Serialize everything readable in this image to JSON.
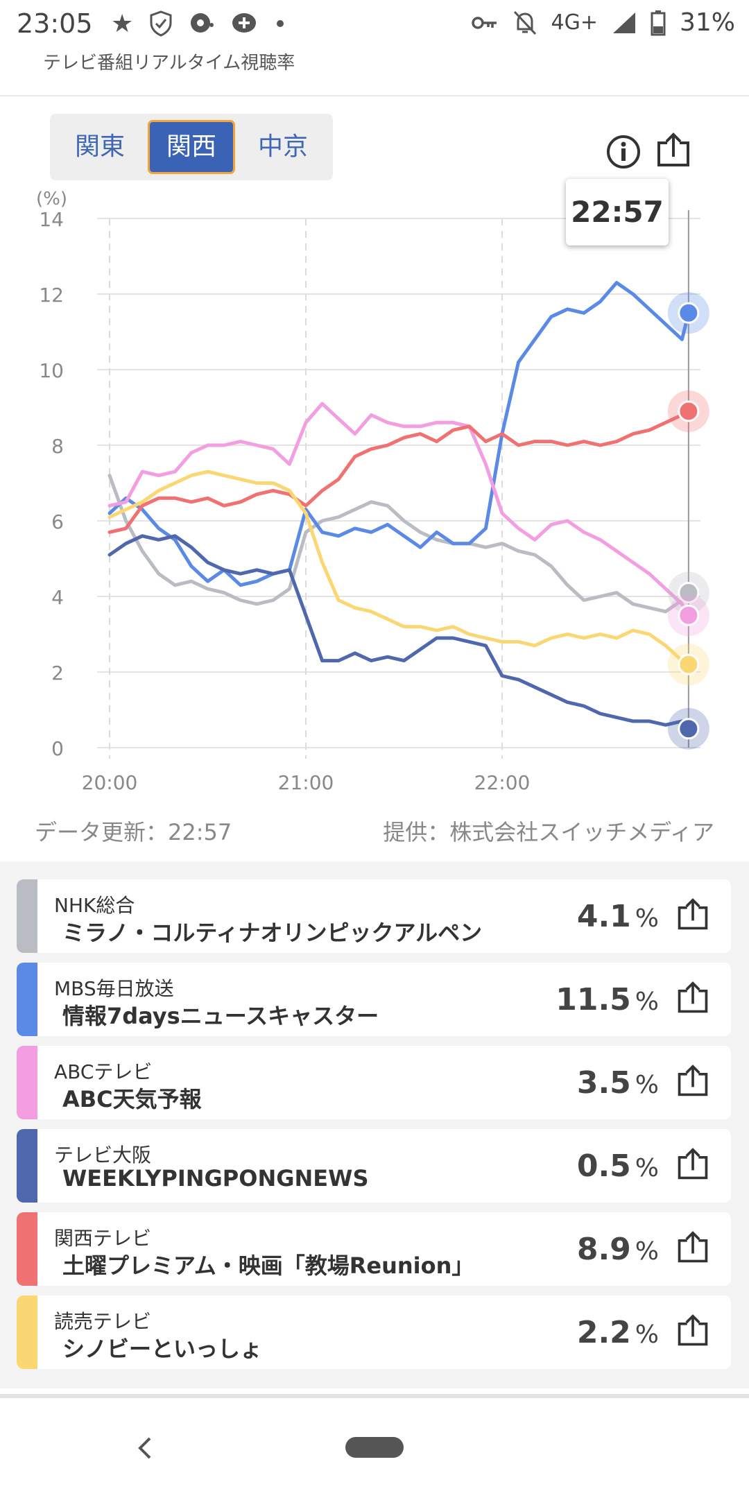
{
  "status_bar": {
    "time": "23:05",
    "network": "4G+",
    "battery": "31%",
    "left_icons": [
      "star-icon",
      "shield-icon",
      "chat-icon",
      "chat-plus-icon",
      "dot-icon"
    ],
    "right_icons": [
      "key-icon",
      "bell-off-icon",
      "signal-icon",
      "battery-icon"
    ]
  },
  "app": {
    "title": "テレビ番組リアルタイム視聴率"
  },
  "region_tabs": [
    {
      "label": "関東",
      "selected": false
    },
    {
      "label": "関西",
      "selected": true
    },
    {
      "label": "中京",
      "selected": false
    }
  ],
  "tooltip": {
    "time": "22:57"
  },
  "meta": {
    "updated": "データ更新：22:57",
    "provider": "提供：株式会社スイッチメディア"
  },
  "colors": {
    "nhk": "#b9bcc2",
    "mbs": "#5b8ae6",
    "abc": "#f29ee0",
    "tvo": "#4f67ad",
    "ktv": "#ef7171",
    "ytv": "#fbd774",
    "accent": "#3a63b5"
  },
  "chart_data": {
    "type": "line",
    "ylabel": "(%)",
    "ylim": [
      0,
      14
    ],
    "yticks": [
      "0",
      "2",
      "4",
      "6",
      "8",
      "10",
      "12",
      "14"
    ],
    "xticks": [
      "20:00",
      "21:00",
      "22:00"
    ],
    "x_minutes": [
      0,
      5,
      10,
      15,
      20,
      25,
      30,
      35,
      40,
      45,
      50,
      55,
      60,
      65,
      70,
      75,
      80,
      85,
      90,
      95,
      100,
      105,
      110,
      115,
      120,
      125,
      130,
      135,
      140,
      145,
      150,
      155,
      160,
      165,
      170,
      175,
      177
    ],
    "series": [
      {
        "name": "NHK総合",
        "color": "#b9bcc2",
        "values": [
          7.2,
          6.0,
          5.2,
          4.6,
          4.3,
          4.4,
          4.2,
          4.1,
          3.9,
          3.8,
          3.9,
          4.2,
          5.7,
          6.0,
          6.1,
          6.3,
          6.5,
          6.4,
          6.0,
          5.7,
          5.5,
          5.4,
          5.4,
          5.3,
          5.4,
          5.2,
          5.1,
          4.8,
          4.3,
          3.9,
          4.0,
          4.1,
          3.8,
          3.7,
          3.6,
          3.9,
          4.1
        ]
      },
      {
        "name": "MBS毎日放送",
        "color": "#5b8ae6",
        "values": [
          6.2,
          6.6,
          6.3,
          5.8,
          5.5,
          4.8,
          4.4,
          4.7,
          4.3,
          4.4,
          4.6,
          4.7,
          6.3,
          5.7,
          5.6,
          5.8,
          5.7,
          5.9,
          5.6,
          5.3,
          5.7,
          5.4,
          5.4,
          5.8,
          8.3,
          10.2,
          10.8,
          11.4,
          11.6,
          11.5,
          11.8,
          12.3,
          12.0,
          11.6,
          11.2,
          10.8,
          11.5
        ]
      },
      {
        "name": "ABCテレビ",
        "color": "#f29ee0",
        "values": [
          6.4,
          6.5,
          7.3,
          7.2,
          7.3,
          7.8,
          8.0,
          8.0,
          8.1,
          8.0,
          7.9,
          7.5,
          8.6,
          9.1,
          8.7,
          8.3,
          8.8,
          8.6,
          8.5,
          8.5,
          8.6,
          8.6,
          8.5,
          7.5,
          6.2,
          5.8,
          5.5,
          5.9,
          6.0,
          5.7,
          5.5,
          5.2,
          4.9,
          4.6,
          4.2,
          3.8,
          3.5
        ]
      },
      {
        "name": "テレビ大阪",
        "color": "#4f67ad",
        "values": [
          5.1,
          5.4,
          5.6,
          5.5,
          5.6,
          5.3,
          4.9,
          4.7,
          4.6,
          4.7,
          4.6,
          4.7,
          3.5,
          2.3,
          2.3,
          2.5,
          2.3,
          2.4,
          2.3,
          2.6,
          2.9,
          2.9,
          2.8,
          2.7,
          1.9,
          1.8,
          1.6,
          1.4,
          1.2,
          1.1,
          0.9,
          0.8,
          0.7,
          0.7,
          0.6,
          0.7,
          0.5
        ]
      },
      {
        "name": "関西テレビ",
        "color": "#ef7171",
        "values": [
          5.7,
          5.8,
          6.4,
          6.6,
          6.6,
          6.5,
          6.6,
          6.4,
          6.5,
          6.7,
          6.8,
          6.7,
          6.4,
          6.8,
          7.1,
          7.7,
          7.9,
          8.0,
          8.2,
          8.3,
          8.1,
          8.4,
          8.5,
          8.1,
          8.3,
          8.0,
          8.1,
          8.1,
          8.0,
          8.1,
          8.0,
          8.1,
          8.3,
          8.4,
          8.6,
          8.8,
          8.9
        ]
      },
      {
        "name": "読売テレビ",
        "color": "#fbd774",
        "values": [
          6.1,
          6.3,
          6.5,
          6.8,
          7.0,
          7.2,
          7.3,
          7.2,
          7.1,
          7.0,
          7.0,
          6.8,
          6.2,
          4.9,
          3.9,
          3.7,
          3.6,
          3.4,
          3.2,
          3.2,
          3.1,
          3.2,
          3.0,
          2.9,
          2.8,
          2.8,
          2.7,
          2.9,
          3.0,
          2.9,
          3.0,
          2.9,
          3.1,
          3.0,
          2.7,
          2.3,
          2.2
        ]
      }
    ]
  },
  "programs": [
    {
      "station": "NHK総合",
      "program": "ミラノ・コルティナオリンピックアルペン",
      "rating": "4.1",
      "unit": "%",
      "key": "nhk"
    },
    {
      "station": "MBS毎日放送",
      "program": "情報7daysニュースキャスター",
      "rating": "11.5",
      "unit": "%",
      "key": "mbs"
    },
    {
      "station": "ABCテレビ",
      "program": "ABC天気予報",
      "rating": "3.5",
      "unit": "%",
      "key": "abc"
    },
    {
      "station": "テレビ大阪",
      "program": "WEEKLYPINGPONGNEWS",
      "rating": "0.5",
      "unit": "%",
      "key": "tvo"
    },
    {
      "station": "関西テレビ",
      "program": "土曜プレミアム・映画「教場Reunion」",
      "rating": "8.9",
      "unit": "%",
      "key": "ktv"
    },
    {
      "station": "読売テレビ",
      "program": "シノビーといっしょ",
      "rating": "2.2",
      "unit": "%",
      "key": "ytv"
    }
  ]
}
